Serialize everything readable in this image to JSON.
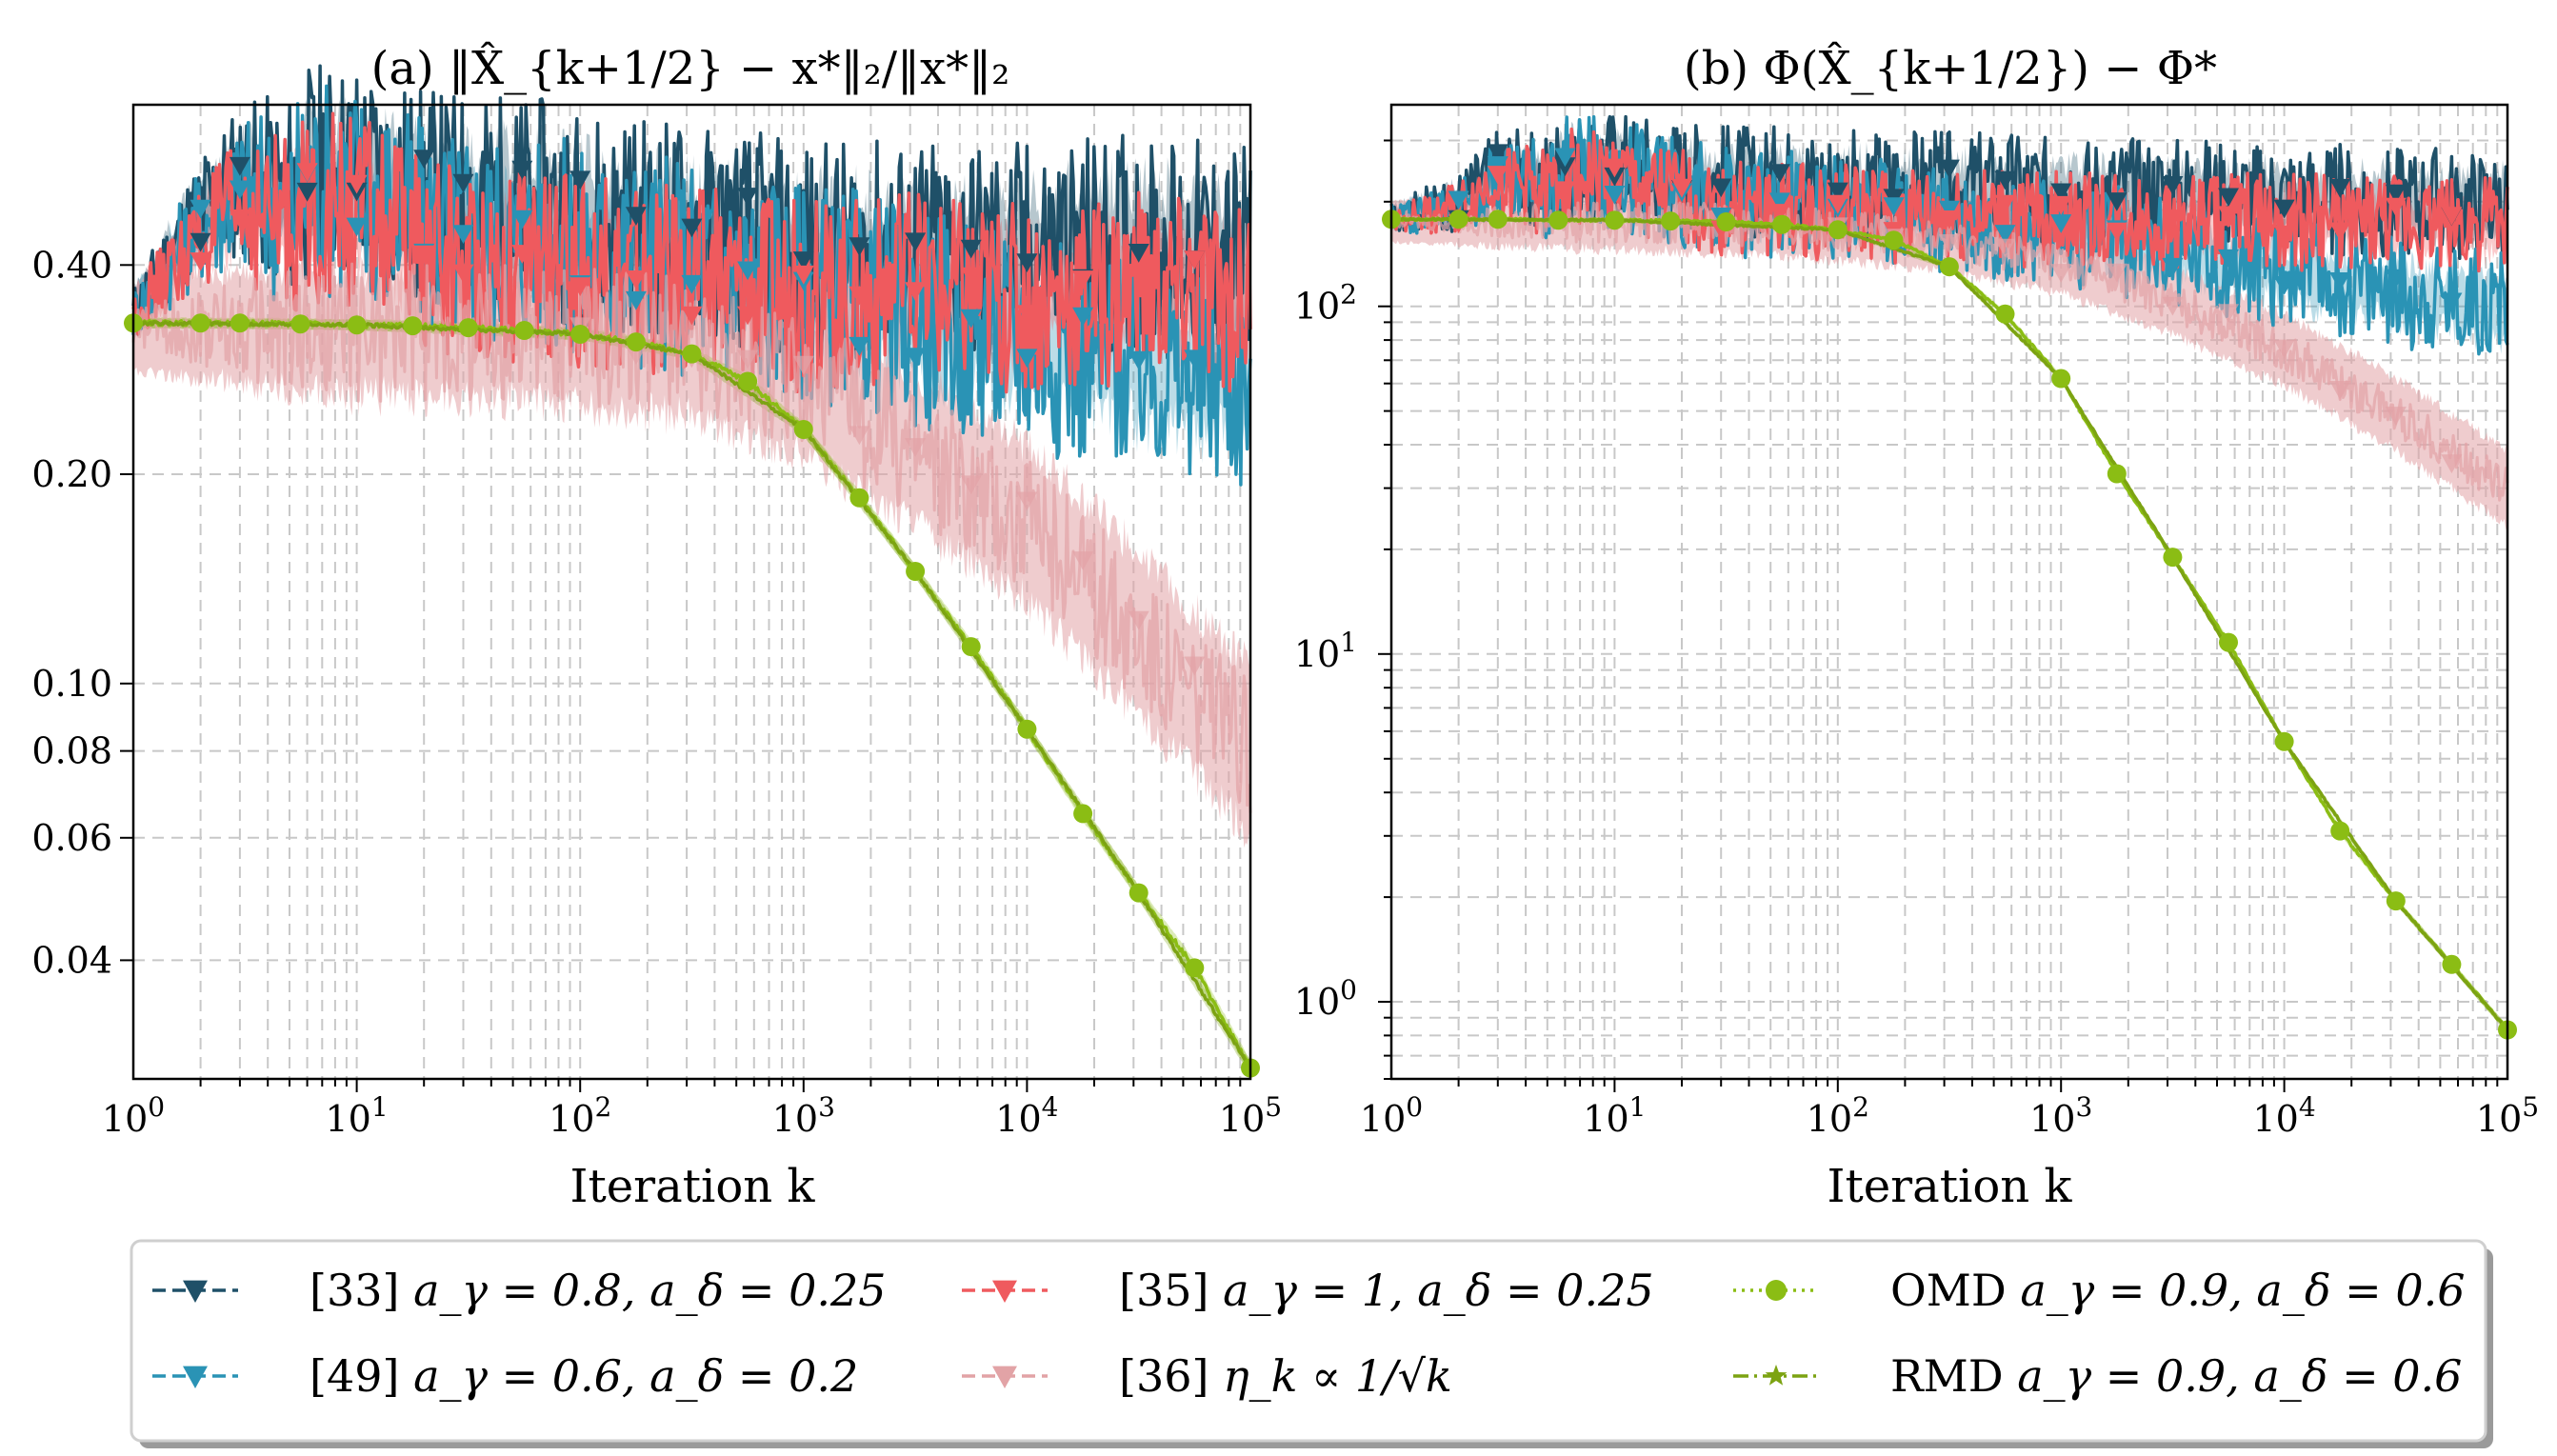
{
  "chart_data": [
    {
      "type": "line",
      "title": "(a) ‖X̂_{k+1/2} − x*‖₂/‖x*‖₂",
      "xlabel": "Iteration k",
      "ylabel": "",
      "xscale": "log",
      "yscale": "log",
      "xlim": [
        1,
        100000
      ],
      "ylim": [
        0.027,
        0.68
      ],
      "x_ticks": [
        1,
        10,
        100,
        1000,
        10000,
        100000
      ],
      "x_tick_labels": [
        {
          "base": "10",
          "exp": "0"
        },
        {
          "base": "10",
          "exp": "1"
        },
        {
          "base": "10",
          "exp": "2"
        },
        {
          "base": "10",
          "exp": "3"
        },
        {
          "base": "10",
          "exp": "4"
        },
        {
          "base": "10",
          "exp": "5"
        }
      ],
      "y_ticks": [
        0.04,
        0.06,
        0.08,
        0.1,
        0.2,
        0.4
      ],
      "y_tick_labels": [
        "0.04",
        "0.06",
        "0.08",
        "0.10",
        "0.20",
        "0.40"
      ],
      "grid": true,
      "series": [
        {
          "name": "[33] aγ = 0.8, aδ = 0.25",
          "color": "#1f5068",
          "marker": "triangle-down",
          "x": [
            1,
            2,
            3,
            5,
            6,
            10,
            20,
            50,
            100,
            300,
            1000,
            3000,
            10000,
            30000,
            100000
          ],
          "y": [
            0.34,
            0.48,
            0.53,
            0.5,
            0.54,
            0.55,
            0.5,
            0.49,
            0.47,
            0.45,
            0.42,
            0.42,
            0.42,
            0.43,
            0.41
          ]
        },
        {
          "name": "[49] aγ = 0.6, aδ = 0.2",
          "color": "#2a93b5",
          "marker": "triangle-down",
          "x": [
            1,
            2,
            3,
            5,
            6,
            10,
            20,
            50,
            100,
            300,
            1000,
            3000,
            10000,
            30000,
            100000
          ],
          "y": [
            0.34,
            0.46,
            0.51,
            0.48,
            0.52,
            0.52,
            0.45,
            0.43,
            0.42,
            0.4,
            0.37,
            0.34,
            0.31,
            0.29,
            0.27
          ]
        },
        {
          "name": "[35] aγ = 1, aδ = 0.25",
          "color": "#ef5a5e",
          "marker": "triangle-down",
          "x": [
            1,
            2,
            3,
            5,
            6,
            10,
            20,
            50,
            100,
            300,
            1000,
            3000,
            10000,
            30000,
            100000
          ],
          "y": [
            0.34,
            0.44,
            0.48,
            0.46,
            0.48,
            0.48,
            0.41,
            0.4,
            0.39,
            0.38,
            0.36,
            0.37,
            0.36,
            0.37,
            0.36
          ]
        },
        {
          "name": "[36] ηk ∝ 1/√k",
          "color": "#e2a3a6",
          "marker": "triangle-down",
          "x": [
            1,
            3,
            10,
            30,
            100,
            200,
            300,
            1000,
            3000,
            10000,
            30000,
            100000
          ],
          "y": [
            0.325,
            0.325,
            0.32,
            0.32,
            0.315,
            0.31,
            0.305,
            0.27,
            0.22,
            0.17,
            0.12,
            0.08
          ]
        },
        {
          "name": "OMD aγ = 0.9, aδ = 0.6",
          "color": "#8bbd14",
          "marker": "circle",
          "x": [
            1,
            2,
            3,
            5.6,
            10,
            17.8,
            31.6,
            56.2,
            100,
            178,
            316,
            562,
            1000,
            1778,
            3162,
            5623,
            10000,
            17783,
            31623,
            56234,
            100000
          ],
          "y": [
            0.33,
            0.33,
            0.33,
            0.329,
            0.328,
            0.327,
            0.325,
            0.322,
            0.318,
            0.31,
            0.298,
            0.272,
            0.232,
            0.185,
            0.145,
            0.113,
            0.086,
            0.065,
            0.05,
            0.039,
            0.028
          ]
        },
        {
          "name": "RMD aγ = 0.9, aδ = 0.6",
          "color": "#7ca312",
          "marker": "star",
          "x": [
            1,
            10,
            100,
            316,
            1000,
            3162,
            10000,
            31623,
            100000
          ],
          "y": [
            0.33,
            0.328,
            0.318,
            0.298,
            0.232,
            0.145,
            0.086,
            0.05,
            0.028
          ]
        }
      ]
    },
    {
      "type": "line",
      "title": "(b) Φ(X̂_{k+1/2}) − Φ*",
      "xlabel": "Iteration k",
      "ylabel": "",
      "xscale": "log",
      "yscale": "log",
      "xlim": [
        1,
        100000
      ],
      "ylim": [
        0.6,
        380
      ],
      "x_ticks": [
        1,
        10,
        100,
        1000,
        10000,
        100000
      ],
      "x_tick_labels": [
        {
          "base": "10",
          "exp": "0"
        },
        {
          "base": "10",
          "exp": "1"
        },
        {
          "base": "10",
          "exp": "2"
        },
        {
          "base": "10",
          "exp": "3"
        },
        {
          "base": "10",
          "exp": "4"
        },
        {
          "base": "10",
          "exp": "5"
        }
      ],
      "y_ticks": [
        1,
        10,
        100
      ],
      "y_tick_labels": [
        {
          "base": "10",
          "exp": "0"
        },
        {
          "base": "10",
          "exp": "1"
        },
        {
          "base": "10",
          "exp": "2"
        }
      ],
      "grid": true,
      "series": [
        {
          "name": "[33] aγ = 0.8, aδ = 0.25",
          "color": "#1f5068",
          "marker": "triangle-down",
          "x": [
            1,
            2,
            3,
            5,
            6,
            10,
            30,
            100,
            300,
            1000,
            3000,
            10000,
            30000,
            100000
          ],
          "y": [
            180,
            200,
            250,
            230,
            260,
            255,
            230,
            225,
            220,
            215,
            210,
            205,
            200,
            195
          ]
        },
        {
          "name": "[49] aγ = 0.6, aδ = 0.2",
          "color": "#2a93b5",
          "marker": "triangle-down",
          "x": [
            1,
            2,
            3,
            5,
            6,
            10,
            30,
            100,
            300,
            1000,
            3000,
            10000,
            30000,
            100000
          ],
          "y": [
            180,
            195,
            240,
            220,
            250,
            240,
            200,
            190,
            180,
            165,
            145,
            125,
            110,
            98
          ]
        },
        {
          "name": "[35] aγ = 1, aδ = 0.25",
          "color": "#ef5a5e",
          "marker": "triangle-down",
          "x": [
            1,
            2,
            3,
            5,
            6,
            10,
            30,
            100,
            300,
            1000,
            3000,
            10000,
            30000,
            100000
          ],
          "y": [
            180,
            190,
            235,
            210,
            240,
            230,
            190,
            185,
            180,
            178,
            175,
            175,
            172,
            170
          ]
        },
        {
          "name": "[36] ηk ∝ 1/√k",
          "color": "#e2a3a6",
          "marker": "triangle-down",
          "x": [
            1,
            10,
            30,
            100,
            300,
            1000,
            3000,
            10000,
            30000,
            100000
          ],
          "y": [
            175,
            175,
            172,
            165,
            155,
            135,
            105,
            75,
            50,
            30
          ]
        },
        {
          "name": "OMD aγ = 0.9, aδ = 0.6",
          "color": "#8bbd14",
          "marker": "circle",
          "x": [
            1,
            2,
            3,
            5.6,
            10,
            17.8,
            31.6,
            56.2,
            100,
            178,
            316,
            562,
            1000,
            1778,
            3162,
            5623,
            10000,
            17783,
            31623,
            56234,
            100000
          ],
          "y": [
            178,
            178,
            178,
            177,
            177,
            176,
            175,
            172,
            166,
            155,
            130,
            95,
            62,
            33,
            19,
            10.8,
            5.6,
            3.1,
            1.95,
            1.28,
            0.83
          ]
        },
        {
          "name": "RMD aγ = 0.9, aδ = 0.6",
          "color": "#7ca312",
          "marker": "star",
          "x": [
            1,
            10,
            100,
            316,
            1000,
            3162,
            10000,
            31623,
            100000
          ],
          "y": [
            178,
            177,
            166,
            130,
            62,
            19,
            5.6,
            1.95,
            0.83
          ]
        }
      ]
    }
  ],
  "legend": {
    "placement": "bottom-center",
    "entries": [
      {
        "ref": "[33]",
        "math": "a_γ = 0.8, a_δ = 0.25",
        "color": "#1f5068",
        "marker": "triangle-down",
        "line": "dashed"
      },
      {
        "ref": "[49]",
        "math": "a_γ = 0.6, a_δ = 0.2",
        "color": "#2a93b5",
        "marker": "triangle-down",
        "line": "dashed"
      },
      {
        "ref": "[35]",
        "math": "a_γ = 1, a_δ = 0.25",
        "color": "#ef5a5e",
        "marker": "triangle-down",
        "line": "dashed"
      },
      {
        "ref": "[36]",
        "math": "η_k ∝ 1/√k",
        "color": "#e2a3a6",
        "marker": "triangle-down",
        "line": "dashed"
      },
      {
        "ref": "OMD",
        "math": "a_γ = 0.9, a_δ = 0.6",
        "color": "#8bbd14",
        "marker": "circle",
        "line": "dotted"
      },
      {
        "ref": "RMD",
        "math": "a_γ = 0.9, a_δ = 0.6",
        "color": "#7ca312",
        "marker": "star",
        "line": "dashdot"
      }
    ]
  }
}
